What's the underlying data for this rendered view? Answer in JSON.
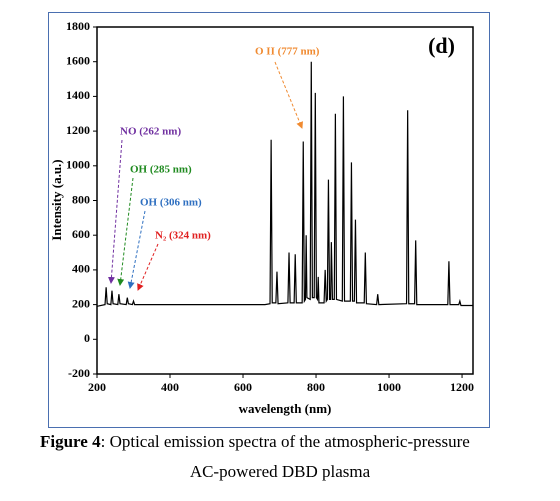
{
  "chart_data": {
    "type": "line",
    "panel_label": "(d)",
    "xlabel": "wavelength (nm)",
    "ylabel": "Intensity (a.u.)",
    "annotations": [
      "NO (262 nm)",
      "OH (285 nm)",
      "OH (306 nm)",
      "N₂ (324 nm)",
      "O II (777 nm)"
    ],
    "color": "#000000",
    "x": [
      200,
      222,
      225,
      228,
      238,
      241,
      244,
      257,
      260,
      263,
      280,
      283,
      286,
      297,
      300,
      303,
      660,
      674,
      677,
      680,
      690,
      693,
      696,
      723,
      726,
      729,
      740,
      743,
      746,
      762,
      765,
      768,
      771,
      773,
      775,
      784,
      787,
      790,
      795,
      798,
      801,
      804,
      806,
      808,
      822,
      825,
      828,
      831,
      834,
      837,
      840,
      842,
      845,
      850,
      853,
      856,
      872,
      875,
      878,
      894,
      897,
      900,
      905,
      908,
      911,
      932,
      935,
      938,
      966,
      969,
      972,
      1048,
      1051,
      1054,
      1070,
      1073,
      1076,
      1161,
      1164,
      1167,
      1191,
      1194,
      1197,
      1230
    ],
    "values": [
      190,
      200,
      300,
      205,
      200,
      280,
      205,
      200,
      260,
      205,
      200,
      240,
      205,
      200,
      220,
      200,
      200,
      205,
      1150,
      210,
      210,
      390,
      205,
      210,
      500,
      210,
      210,
      490,
      210,
      210,
      1140,
      220,
      230,
      600,
      240,
      230,
      1600,
      240,
      240,
      1420,
      240,
      230,
      360,
      210,
      210,
      400,
      220,
      230,
      920,
      230,
      230,
      560,
      230,
      230,
      1300,
      230,
      220,
      1400,
      220,
      220,
      1020,
      220,
      220,
      690,
      210,
      210,
      500,
      205,
      200,
      260,
      200,
      205,
      1320,
      205,
      205,
      570,
      200,
      200,
      450,
      200,
      200,
      220,
      195,
      195
    ],
    "xlim": [
      200,
      1230
    ],
    "ylim": [
      -200,
      1800
    ],
    "xticks": [
      200,
      400,
      600,
      800,
      1000,
      1200
    ],
    "yticks": [
      -200,
      0,
      200,
      400,
      600,
      800,
      1000,
      1200,
      1400,
      1600,
      1800
    ]
  },
  "caption": {
    "label": "Figure 4",
    "line1": ": Optical emission spectra of the atmospheric-pressure",
    "line2": "AC-powered DBD plasma"
  }
}
